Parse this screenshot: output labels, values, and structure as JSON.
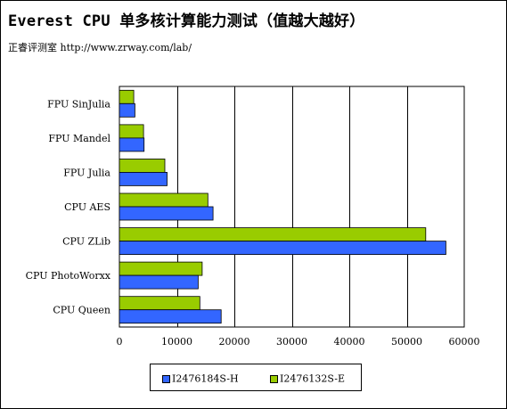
{
  "header": {
    "title": "Everest CPU 单多核计算能力测试（值越大越好）",
    "subtitle": "正睿评测室 http://www.zrway.com/lab/"
  },
  "colors": {
    "series_h": "#3366ff",
    "series_e": "#99cc00",
    "plot_background": "#ffffff",
    "gridline": "#000000"
  },
  "chart_data": {
    "type": "bar",
    "orientation": "horizontal",
    "title": "Everest CPU 单多核计算能力测试（值越大越好）",
    "xlabel": "",
    "ylabel": "",
    "xlim": [
      0,
      60000
    ],
    "x_ticks": [
      0,
      10000,
      20000,
      30000,
      40000,
      50000,
      60000
    ],
    "grid": true,
    "legend_position": "bottom",
    "categories": [
      "FPU SinJulia",
      "FPU Mandel",
      "FPU Julia",
      "CPU AES",
      "CPU ZLib",
      "CPU PhotoWorxx",
      "CPU Queen"
    ],
    "series": [
      {
        "name": "I2476184S-H",
        "color": "#3366ff",
        "values": [
          2700,
          4300,
          8300,
          16300,
          56800,
          13700,
          17700
        ]
      },
      {
        "name": "I2476132S-E",
        "color": "#99cc00",
        "values": [
          2500,
          4200,
          7900,
          15400,
          53300,
          14400,
          14000
        ]
      }
    ]
  }
}
